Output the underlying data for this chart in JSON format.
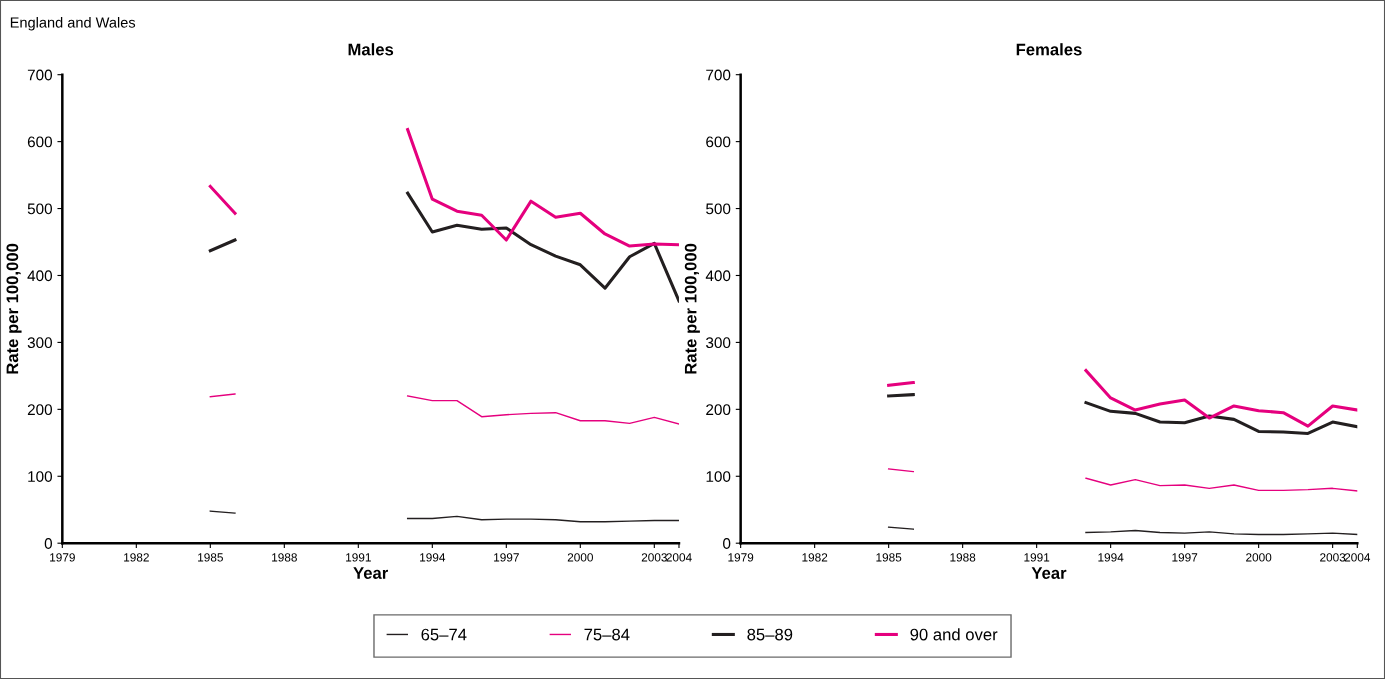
{
  "chart_data": [
    {
      "type": "line",
      "title": "Males",
      "xlabel": "Year",
      "ylabel": "Rate per 100,000",
      "annotations": [
        "England and Wales"
      ],
      "legend": "bottom",
      "grid": false,
      "x": [
        1985,
        1986,
        1987,
        1988,
        1989,
        1990,
        1991,
        1992,
        1993,
        1994,
        1995,
        1996,
        1997,
        1998,
        1999,
        2000,
        2001,
        2002,
        2003,
        2004
      ],
      "xlim": [
        1979,
        2004
      ],
      "xticks": [
        1979,
        1982,
        1985,
        1988,
        1991,
        1994,
        1997,
        2000,
        2003,
        2004
      ],
      "ylim": [
        0,
        700
      ],
      "yticks": [
        0,
        100,
        200,
        300,
        400,
        500,
        600,
        700
      ],
      "series": [
        {
          "name": "65–74",
          "color": "#231f20",
          "values": [
            48,
            45,
            null,
            null,
            null,
            null,
            null,
            null,
            37,
            37,
            40,
            35,
            36,
            36,
            35,
            32,
            32,
            33,
            34,
            34
          ]
        },
        {
          "name": "75–84",
          "color": "#e5007e",
          "values": [
            219,
            223,
            null,
            null,
            null,
            null,
            null,
            null,
            220,
            213,
            213,
            189,
            192,
            194,
            195,
            183,
            183,
            179,
            188,
            178
          ]
        },
        {
          "name": "85–89",
          "color": "#231f20",
          "values": [
            437,
            453,
            null,
            null,
            null,
            null,
            null,
            null,
            523,
            465,
            475,
            469,
            471,
            446,
            429,
            416,
            381,
            428,
            448,
            362
          ]
        },
        {
          "name": "90 and over",
          "color": "#e5007e",
          "values": [
            533,
            493,
            null,
            null,
            null,
            null,
            null,
            null,
            618,
            514,
            496,
            490,
            453,
            511,
            487,
            493,
            462,
            444,
            447,
            446
          ]
        }
      ]
    },
    {
      "type": "line",
      "title": "Females",
      "xlabel": "Year",
      "ylabel": "Rate per 100,000",
      "grid": false,
      "x": [
        1985,
        1986,
        1987,
        1988,
        1989,
        1990,
        1991,
        1992,
        1993,
        1994,
        1995,
        1996,
        1997,
        1998,
        1999,
        2000,
        2001,
        2002,
        2003,
        2004
      ],
      "xlim": [
        1979,
        2004
      ],
      "xticks": [
        1979,
        1982,
        1985,
        1988,
        1991,
        1994,
        1997,
        2000,
        2003,
        2004
      ],
      "ylim": [
        0,
        700
      ],
      "yticks": [
        0,
        100,
        200,
        300,
        400,
        500,
        600,
        700
      ],
      "series": [
        {
          "color": "#231f20",
          "values": [
            24,
            21,
            null,
            null,
            null,
            null,
            null,
            null,
            16,
            17,
            19,
            16,
            15,
            17,
            14,
            13,
            13,
            14,
            15,
            13
          ]
        },
        {
          "color": "#e5007e",
          "values": [
            111,
            107,
            null,
            null,
            null,
            null,
            null,
            null,
            97,
            87,
            95,
            86,
            87,
            82,
            87,
            79,
            79,
            80,
            82,
            78
          ]
        },
        {
          "color": "#231f20",
          "values": [
            220,
            222,
            null,
            null,
            null,
            null,
            null,
            null,
            210,
            197,
            194,
            181,
            180,
            190,
            185,
            167,
            166,
            164,
            181,
            174
          ]
        },
        {
          "color": "#e5007e",
          "values": [
            236,
            240,
            null,
            null,
            null,
            null,
            null,
            null,
            258,
            217,
            199,
            208,
            214,
            187,
            205,
            198,
            195,
            175,
            205,
            199
          ]
        }
      ]
    }
  ]
}
